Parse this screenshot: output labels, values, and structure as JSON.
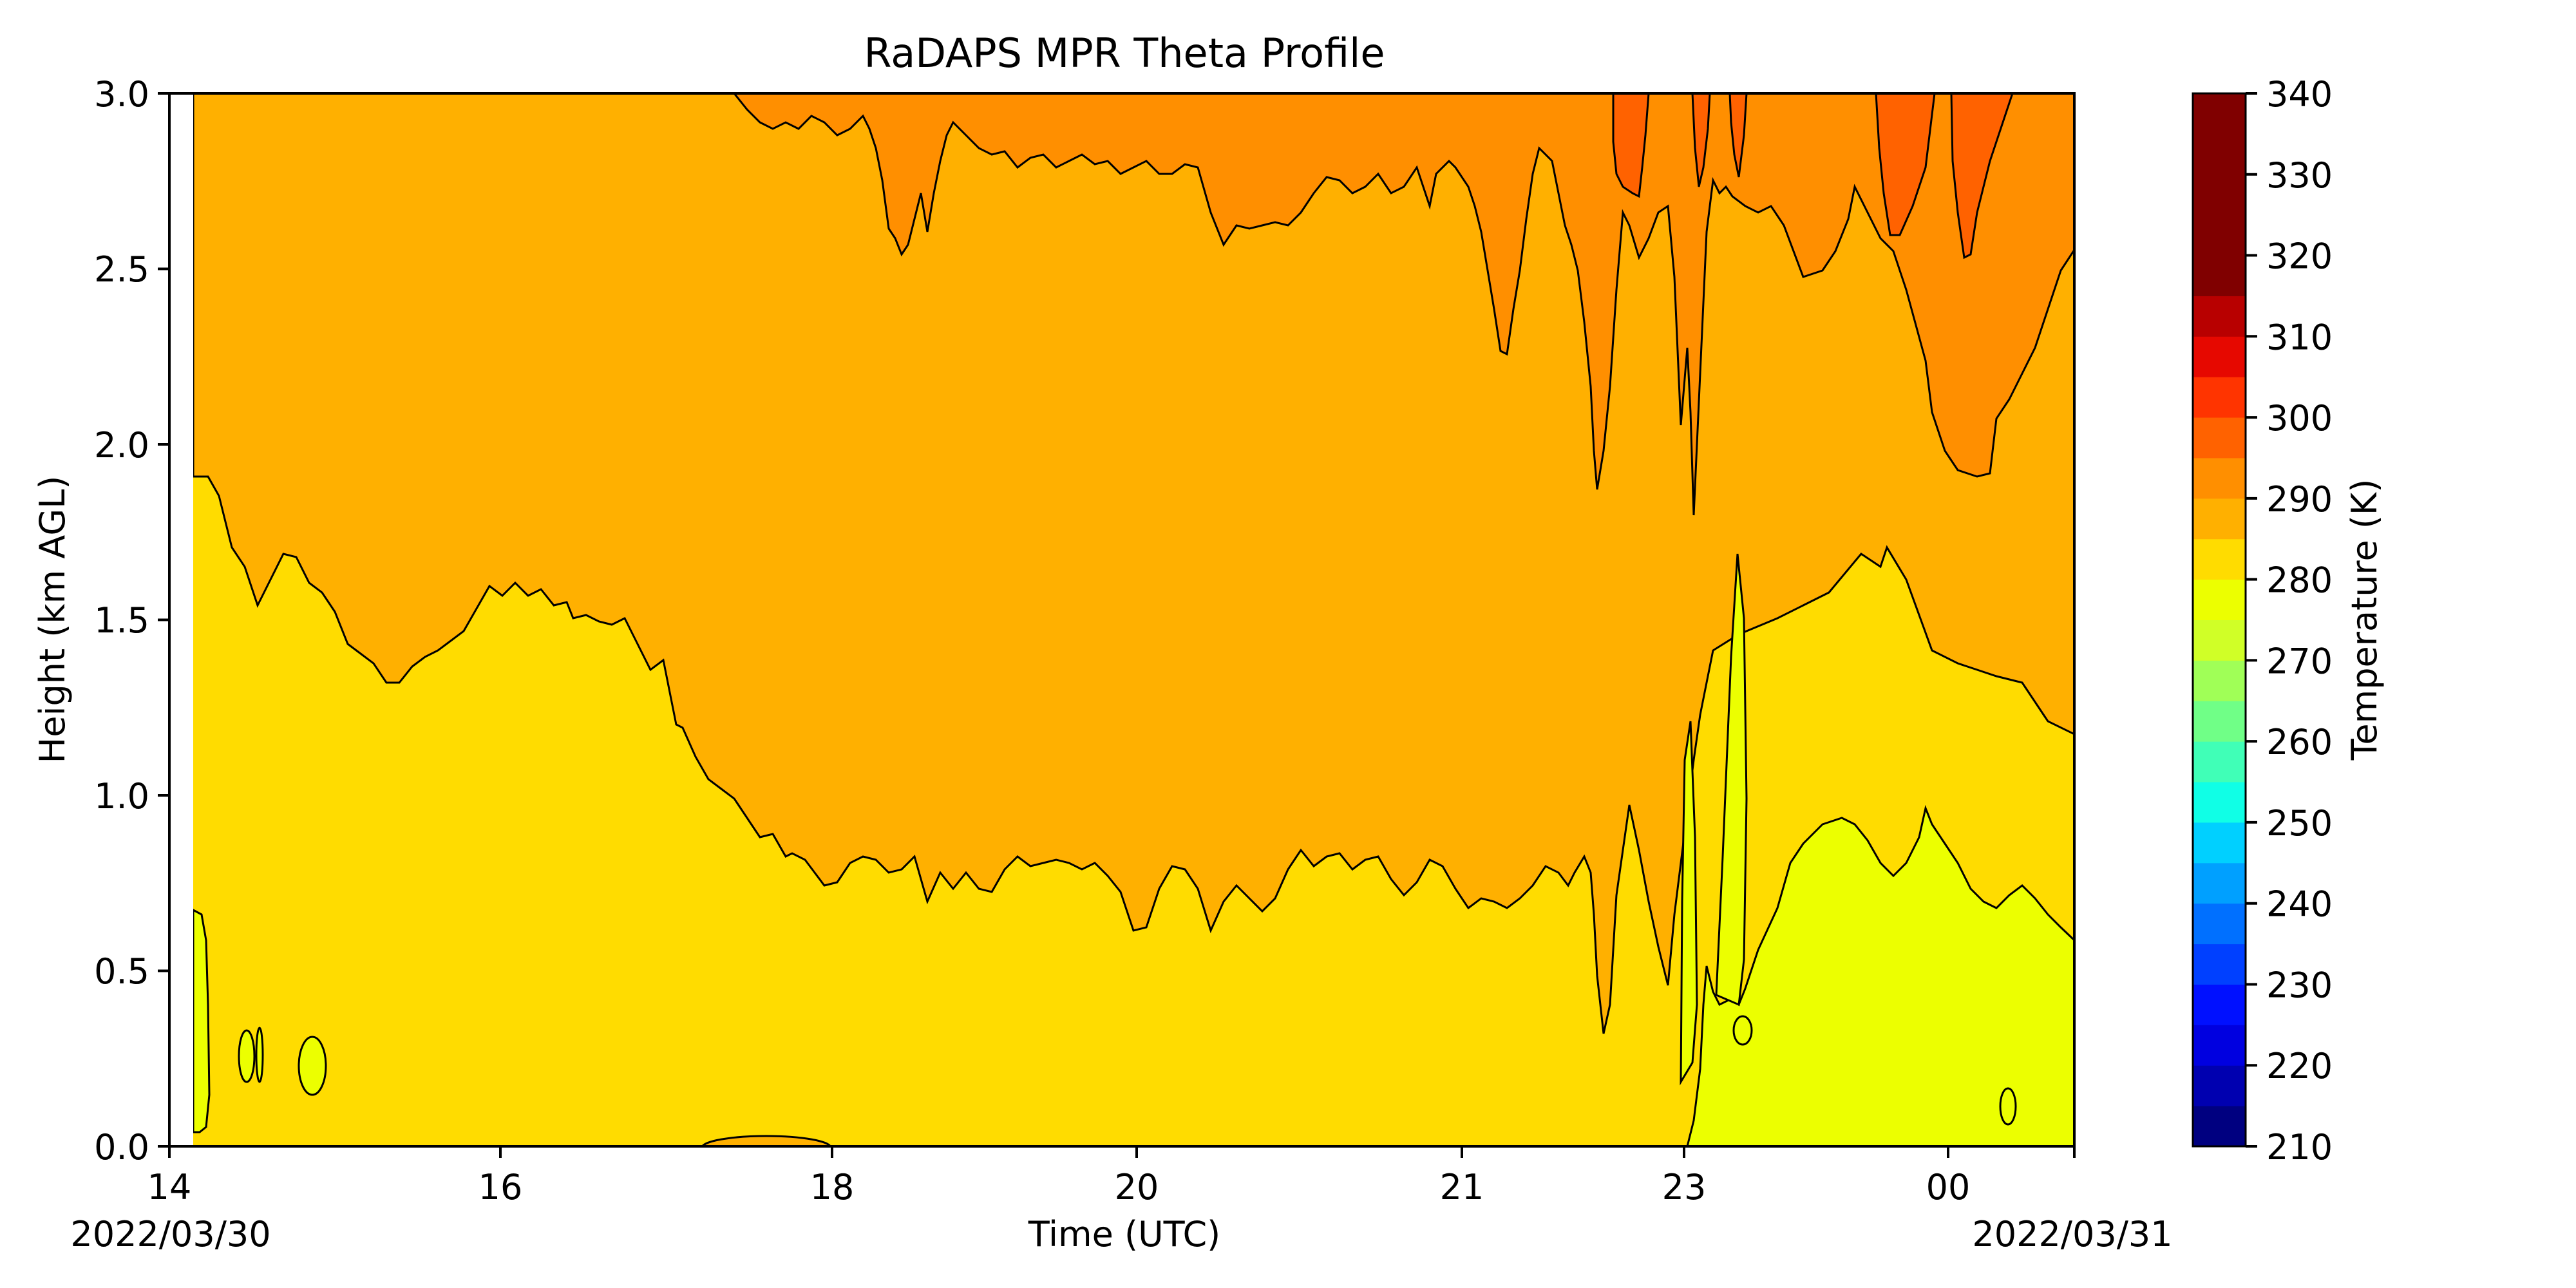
{
  "chart_data": {
    "type": "contourf",
    "title": "RaDAPS MPR Theta Profile",
    "xlabel": "Time (UTC)",
    "ylabel": "Height (km AGL)",
    "ylim": [
      0,
      3
    ],
    "x_ticks": [
      "14",
      "16",
      "18",
      "20",
      "21",
      "23",
      "00"
    ],
    "date_labels": {
      "start": "2022/03/30",
      "end": "2022/03/31"
    },
    "y_ticks": [
      "0.0",
      "0.5",
      "1.0",
      "1.5",
      "2.0",
      "2.5",
      "3.0"
    ],
    "colorbar": {
      "label": "Temperature (K)",
      "range": [
        210,
        340
      ],
      "step": 5,
      "tick_labels": [
        "210",
        "220",
        "230",
        "240",
        "250",
        "260",
        "270",
        "280",
        "290",
        "300",
        "310",
        "320",
        "330",
        "340"
      ],
      "colors": [
        "#000080",
        "#0000b0",
        "#0000e0",
        "#0010ff",
        "#0040ff",
        "#0070ff",
        "#00a0ff",
        "#00d0ff",
        "#10ffe6",
        "#40ffb7",
        "#70ff87",
        "#a0ff57",
        "#d0ff27",
        "#ecff00",
        "#ffdc00",
        "#ffb000",
        "#ff8f00",
        "#ff6200",
        "#ff3400",
        "#e60800",
        "#b80000",
        "#800000"
      ]
    },
    "regions": {
      "band_290_295": "#ecff00",
      "band_295_300": "#ffdc00",
      "band_300_305": "#ffb000",
      "band_305_310": "#ff8f00",
      "band_310_315": "#ff6200"
    }
  }
}
